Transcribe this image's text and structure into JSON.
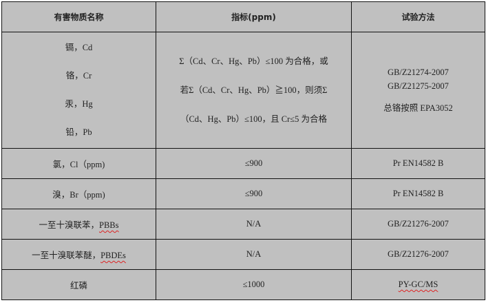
{
  "table": {
    "headers": [
      "有害物质名称",
      "指标(ppm)",
      "试验方法"
    ],
    "heavy_metals": {
      "names": [
        "镉，Cd",
        "铬，Cr",
        "汞，Hg",
        "铅，Pb"
      ],
      "criteria": [
        "Σ（Cd、Cr、Hg、Pb）≤100 为合格，或",
        "若Σ（Cd、Cr、Hg、Pb）≧100，则须Σ",
        "（Cd、Hg、Pb）≤100，且 Cr≤5 为合格"
      ],
      "methods": [
        "GB/Z21274-2007",
        "GB/Z21275-2007",
        "总铬按照 EPA3052"
      ]
    },
    "rows": [
      {
        "name": "氯，Cl（ppm)",
        "limit": "≤900",
        "method": "Pr EN14582 B"
      },
      {
        "name": "溴，Br（ppm)",
        "limit": "≤900",
        "method": "Pr EN14582 B"
      },
      {
        "name_prefix": "一至十溴联苯，",
        "name_suffix": "PBBs",
        "limit": "N/A",
        "method": "GB/Z21276-2007"
      },
      {
        "name_prefix": "一至十溴联苯醚，",
        "name_suffix": "PBDEs",
        "limit": "N/A",
        "method": "GB/Z21276-2007"
      },
      {
        "name": "红磷",
        "limit": "≤1000",
        "method": "PY-GC/MS"
      }
    ]
  }
}
